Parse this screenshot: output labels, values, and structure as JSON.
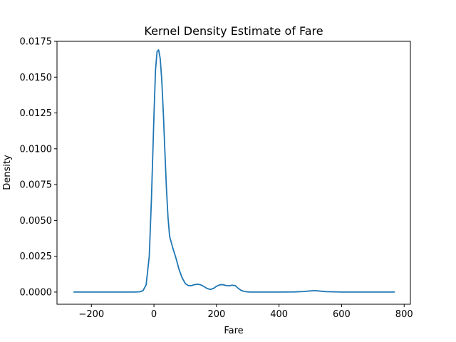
{
  "chart_data": {
    "type": "line",
    "title": "Kernel Density Estimate of Fare",
    "xlabel": "Fare",
    "ylabel": "Density",
    "xlim": [
      -310,
      820
    ],
    "ylim": [
      -0.00085,
      0.0175
    ],
    "xticks": [
      -200,
      0,
      200,
      400,
      600,
      800
    ],
    "xtick_labels": [
      "−200",
      "0",
      "200",
      "400",
      "600",
      "800"
    ],
    "yticks": [
      0.0,
      0.0025,
      0.005,
      0.0075,
      0.01,
      0.0125,
      0.015,
      0.0175
    ],
    "ytick_labels": [
      "0.0000",
      "0.0025",
      "0.0050",
      "0.0075",
      "0.0100",
      "0.0125",
      "0.0150",
      "0.0175"
    ],
    "grid": false,
    "line_color": "#1f77b4",
    "series": [
      {
        "x": [
          -256,
          -200,
          -150,
          -100,
          -60,
          -45,
          -35,
          -25,
          -15,
          -8,
          0,
          5,
          10,
          15,
          20,
          25,
          30,
          35,
          40,
          45,
          50,
          60,
          70,
          80,
          90,
          100,
          110,
          120,
          130,
          140,
          150,
          160,
          170,
          180,
          190,
          200,
          210,
          220,
          230,
          240,
          250,
          260,
          270,
          280,
          290,
          300,
          310,
          320,
          350,
          400,
          450,
          480,
          500,
          512,
          525,
          550,
          600,
          650,
          700,
          769
        ],
        "y": [
          0.0,
          0.0,
          0.0,
          0.0,
          0.0,
          2e-05,
          0.0001,
          0.0005,
          0.0025,
          0.0065,
          0.0123,
          0.0155,
          0.0168,
          0.0169,
          0.0163,
          0.0148,
          0.0125,
          0.0098,
          0.0072,
          0.0052,
          0.0039,
          0.0031,
          0.0024,
          0.0016,
          0.001,
          0.0006,
          0.00045,
          0.00045,
          0.00052,
          0.00055,
          0.0005,
          0.00038,
          0.00025,
          0.00018,
          0.00025,
          0.0004,
          0.0005,
          0.00052,
          0.00046,
          0.00043,
          0.00048,
          0.00045,
          0.00025,
          0.0001,
          4e-05,
          1e-05,
          0.0,
          0.0,
          0.0,
          0.0,
          1e-05,
          4e-05,
          8e-05,
          0.0001,
          8e-05,
          3e-05,
          0.0,
          0.0,
          0.0,
          0.0
        ]
      }
    ]
  }
}
